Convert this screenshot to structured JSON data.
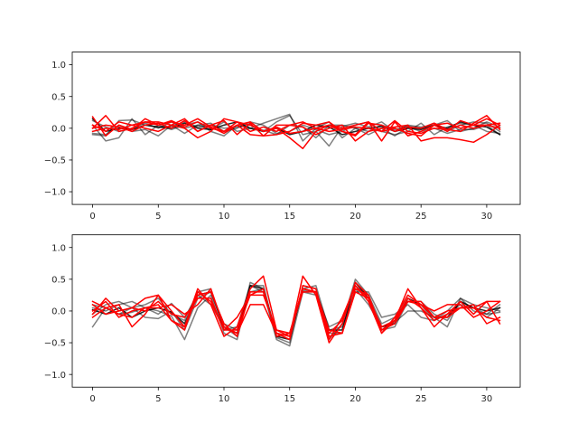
{
  "chart_data": [
    {
      "type": "line",
      "xlim": [
        -1.55,
        32.55
      ],
      "ylim": [
        -1.2,
        1.2
      ],
      "xticks": [
        0,
        5,
        10,
        15,
        20,
        25,
        30
      ],
      "yticks": [
        -1.0,
        -0.5,
        0.0,
        0.5,
        1.0
      ],
      "xtick_labels": [
        "0",
        "5",
        "10",
        "15",
        "20",
        "25",
        "30"
      ],
      "ytick_labels": [
        "−1.0",
        "−0.5",
        "0.0",
        "0.5",
        "1.0"
      ],
      "grid": false,
      "series": [
        {
          "color": "#000000",
          "opacity": 0.5,
          "values": [
            -0.1,
            -0.12,
            0.12,
            0.13,
            0.05,
            0.02,
            0.03,
            0.1,
            0.02,
            0.05,
            0.0,
            0.02,
            0.05,
            -0.05,
            0.1,
            0.2,
            -0.1,
            -0.05,
            -0.28,
            0.03,
            0.08,
            0.02,
            0.1,
            -0.05,
            0.05,
            0.02,
            0.05,
            0.12,
            -0.05,
            0.0,
            0.1,
            0.02
          ]
        },
        {
          "color": "#000000",
          "opacity": 0.5,
          "values": [
            0.05,
            -0.2,
            -0.15,
            0.15,
            -0.1,
            0.05,
            -0.02,
            0.05,
            0.1,
            -0.05,
            -0.12,
            0.05,
            0.0,
            0.08,
            0.15,
            0.22,
            -0.2,
            0.0,
            0.1,
            -0.15,
            0.0,
            -0.05,
            0.05,
            -0.02,
            0.03,
            0.0,
            0.08,
            -0.05,
            0.05,
            0.1,
            0.08,
            -0.05
          ]
        },
        {
          "color": "#000000",
          "opacity": 0.5,
          "values": [
            -0.08,
            -0.1,
            0.05,
            -0.05,
            -0.02,
            -0.12,
            0.05,
            -0.08,
            0.05,
            -0.02,
            0.1,
            -0.05,
            0.0,
            -0.03,
            -0.1,
            0.05,
            0.02,
            -0.15,
            0.05,
            0.05,
            0.0,
            -0.1,
            0.0,
            -0.12,
            0.02,
            -0.05,
            0.0,
            -0.08,
            -0.02,
            -0.02,
            0.05,
            -0.1
          ]
        },
        {
          "color": "#000000",
          "opacity": 0.5,
          "values": [
            0.12,
            0.02,
            -0.05,
            0.0,
            0.08,
            0.0,
            0.1,
            0.0,
            0.05,
            0.08,
            -0.05,
            0.0,
            0.1,
            0.05,
            -0.08,
            -0.05,
            0.05,
            -0.02,
            -0.1,
            -0.05,
            0.05,
            0.1,
            -0.05,
            -0.1,
            -0.05,
            0.08,
            -0.1,
            0.02,
            0.08,
            0.05,
            -0.05,
            -0.08
          ]
        },
        {
          "color": "#000000",
          "opacity": 0.85,
          "values": [
            0.15,
            -0.05,
            0.0,
            -0.02,
            0.05,
            0.02,
            0.0,
            0.08,
            0.0,
            -0.02,
            0.05,
            0.1,
            0.0,
            -0.05,
            0.0,
            -0.1,
            -0.05,
            0.05,
            0.02,
            -0.1,
            -0.05,
            0.0,
            0.03,
            -0.05,
            0.0,
            -0.02,
            0.05,
            0.0,
            0.1,
            0.05,
            0.02,
            -0.1
          ]
        },
        {
          "color": "#ff0000",
          "opacity": 1,
          "values": [
            0.18,
            -0.12,
            0.05,
            -0.02,
            0.15,
            0.05,
            0.12,
            0.02,
            0.1,
            0.0,
            -0.05,
            0.1,
            0.05,
            -0.05,
            0.0,
            -0.15,
            -0.32,
            -0.05,
            0.05,
            -0.05,
            -0.12,
            0.08,
            0.05,
            -0.05,
            0.02,
            0.0,
            0.08,
            -0.02,
            -0.05,
            0.08,
            0.2,
            -0.02
          ]
        },
        {
          "color": "#ff0000",
          "opacity": 1,
          "values": [
            0.0,
            0.2,
            -0.05,
            0.0,
            0.1,
            0.1,
            0.05,
            0.15,
            -0.05,
            0.05,
            0.12,
            -0.1,
            0.08,
            -0.12,
            0.05,
            0.05,
            0.1,
            0.0,
            0.05,
            0.0,
            0.05,
            0.1,
            -0.2,
            0.1,
            -0.12,
            -0.05,
            0.05,
            0.08,
            0.0,
            0.05,
            0.15,
            0.05
          ]
        },
        {
          "color": "#ff0000",
          "opacity": 1,
          "values": [
            -0.05,
            0.0,
            -0.02,
            0.05,
            0.0,
            -0.05,
            0.05,
            0.0,
            -0.15,
            -0.05,
            0.15,
            0.1,
            -0.05,
            0.02,
            -0.05,
            0.05,
            0.02,
            -0.1,
            0.0,
            0.05,
            -0.2,
            -0.05,
            0.0,
            0.02,
            0.05,
            -0.2,
            -0.15,
            -0.15,
            -0.18,
            -0.22,
            -0.1,
            0.05
          ]
        },
        {
          "color": "#ff0000",
          "opacity": 1,
          "values": [
            0.05,
            -0.05,
            0.1,
            0.05,
            0.1,
            0.05,
            0.1,
            0.05,
            0.15,
            0.02,
            -0.08,
            0.05,
            -0.1,
            -0.12,
            -0.1,
            -0.05,
            0.08,
            0.05,
            0.1,
            -0.05,
            -0.1,
            0.1,
            -0.05,
            0.0,
            -0.08,
            -0.12,
            0.05,
            -0.05,
            0.12,
            0.05,
            0.05,
            0.0
          ]
        },
        {
          "color": "#ff0000",
          "opacity": 1,
          "values": [
            0.0,
            0.05,
            0.02,
            -0.05,
            0.05,
            0.08,
            0.0,
            0.12,
            -0.05,
            0.05,
            -0.05,
            0.05,
            0.1,
            -0.05,
            0.02,
            -0.08,
            -0.05,
            0.0,
            -0.05,
            -0.02,
            0.02,
            0.0,
            -0.05,
            0.12,
            -0.05,
            -0.08,
            0.0,
            -0.02,
            0.05,
            0.0,
            0.05,
            0.08
          ]
        }
      ]
    },
    {
      "type": "line",
      "xlim": [
        -1.55,
        32.55
      ],
      "ylim": [
        -1.2,
        1.2
      ],
      "xticks": [
        0,
        5,
        10,
        15,
        20,
        25,
        30
      ],
      "yticks": [
        -1.0,
        -0.5,
        0.0,
        0.5,
        1.0
      ],
      "xtick_labels": [
        "0",
        "5",
        "10",
        "15",
        "20",
        "25",
        "30"
      ],
      "ytick_labels": [
        "−1.0",
        "−0.5",
        "0.0",
        "0.5",
        "1.0"
      ],
      "grid": false,
      "series": [
        {
          "color": "#000000",
          "opacity": 0.5,
          "values": [
            -0.25,
            0.05,
            -0.05,
            -0.02,
            0.05,
            0.0,
            -0.08,
            -0.45,
            0.05,
            0.25,
            -0.35,
            -0.45,
            0.4,
            0.3,
            -0.45,
            -0.55,
            0.3,
            0.25,
            -0.35,
            -0.35,
            0.35,
            0.1,
            -0.25,
            -0.18,
            0.0,
            0.0,
            -0.1,
            -0.25,
            0.2,
            0.0,
            -0.05,
            -0.02
          ]
        },
        {
          "color": "#000000",
          "opacity": 0.5,
          "values": [
            0.05,
            0.0,
            0.1,
            0.15,
            0.05,
            -0.05,
            0.12,
            -0.1,
            0.25,
            0.1,
            -0.25,
            -0.4,
            0.45,
            0.35,
            -0.42,
            -0.5,
            0.4,
            0.35,
            -0.45,
            -0.2,
            0.5,
            0.25,
            -0.2,
            -0.1,
            0.2,
            0.1,
            -0.15,
            -0.05,
            0.1,
            0.05,
            -0.05,
            0.1
          ]
        },
        {
          "color": "#000000",
          "opacity": 0.5,
          "values": [
            0.1,
            0.05,
            -0.05,
            0.05,
            -0.1,
            -0.12,
            0.0,
            -0.3,
            0.2,
            0.3,
            -0.2,
            -0.3,
            0.3,
            0.35,
            -0.35,
            -0.4,
            0.32,
            0.3,
            -0.25,
            -0.15,
            0.4,
            0.2,
            -0.3,
            -0.25,
            0.15,
            0.15,
            -0.05,
            -0.15,
            0.15,
            0.05,
            -0.1,
            0.05
          ]
        },
        {
          "color": "#000000",
          "opacity": 0.5,
          "values": [
            -0.05,
            0.1,
            0.15,
            0.05,
            0.1,
            0.2,
            -0.05,
            -0.15,
            0.3,
            0.35,
            -0.3,
            -0.25,
            0.4,
            0.4,
            -0.4,
            -0.35,
            0.35,
            0.4,
            -0.3,
            -0.25,
            0.3,
            0.3,
            -0.1,
            -0.05,
            0.1,
            -0.1,
            -0.15,
            0.0,
            0.2,
            0.1,
            0.05,
            0.0
          ]
        },
        {
          "color": "#000000",
          "opacity": 0.85,
          "values": [
            0.02,
            -0.05,
            0.05,
            -0.1,
            0.0,
            0.05,
            -0.02,
            -0.2,
            0.25,
            0.3,
            -0.25,
            -0.35,
            0.4,
            0.35,
            -0.4,
            -0.45,
            0.35,
            0.3,
            -0.3,
            -0.3,
            0.45,
            0.2,
            -0.25,
            -0.2,
            0.2,
            0.1,
            -0.1,
            -0.1,
            0.15,
            0.05,
            0.0,
            0.05
          ]
        },
        {
          "color": "#ff0000",
          "opacity": 1,
          "values": [
            0.15,
            0.05,
            0.1,
            -0.25,
            -0.05,
            0.25,
            0.0,
            -0.25,
            0.35,
            0.1,
            -0.4,
            -0.25,
            0.35,
            0.55,
            -0.3,
            -0.4,
            0.55,
            0.25,
            -0.5,
            -0.2,
            0.45,
            0.25,
            -0.35,
            -0.15,
            0.35,
            0.05,
            -0.25,
            -0.05,
            0.15,
            -0.05,
            0.15,
            -0.2
          ]
        },
        {
          "color": "#ff0000",
          "opacity": 1,
          "values": [
            -0.05,
            0.2,
            0.0,
            0.05,
            0.2,
            0.25,
            -0.15,
            -0.25,
            0.25,
            0.3,
            -0.2,
            -0.4,
            0.3,
            0.3,
            -0.35,
            -0.45,
            0.4,
            0.35,
            -0.45,
            -0.1,
            0.4,
            0.15,
            -0.35,
            -0.1,
            0.25,
            0.1,
            0.0,
            0.1,
            0.1,
            -0.1,
            0.0,
            0.15
          ]
        },
        {
          "color": "#ff0000",
          "opacity": 1,
          "values": [
            0.1,
            -0.05,
            0.0,
            0.05,
            0.0,
            0.15,
            -0.05,
            -0.1,
            0.2,
            0.2,
            -0.3,
            -0.1,
            0.25,
            0.35,
            -0.4,
            -0.35,
            0.3,
            0.3,
            -0.4,
            -0.35,
            0.35,
            0.25,
            -0.3,
            -0.2,
            0.15,
            0.15,
            -0.1,
            -0.1,
            0.05,
            0.1,
            -0.2,
            -0.1
          ]
        },
        {
          "color": "#ff0000",
          "opacity": 1,
          "values": [
            0.0,
            0.15,
            -0.1,
            0.0,
            0.05,
            0.05,
            0.1,
            -0.05,
            0.1,
            0.35,
            -0.25,
            -0.35,
            0.1,
            0.1,
            -0.35,
            -0.4,
            0.35,
            0.3,
            -0.3,
            -0.35,
            0.3,
            0.2,
            -0.25,
            -0.15,
            0.15,
            0.1,
            -0.1,
            0.0,
            0.05,
            0.05,
            0.15,
            0.15
          ]
        },
        {
          "color": "#ff0000",
          "opacity": 1,
          "values": [
            -0.1,
            0.05,
            -0.05,
            -0.1,
            0.05,
            0.1,
            -0.15,
            -0.3,
            0.3,
            0.15,
            -0.3,
            -0.3,
            0.25,
            0.25,
            -0.3,
            -0.35,
            0.35,
            0.3,
            -0.35,
            -0.15,
            0.4,
            0.2,
            -0.3,
            -0.15,
            0.2,
            0.05,
            -0.15,
            -0.05,
            0.05,
            0.05,
            -0.1,
            -0.15
          ]
        }
      ]
    }
  ]
}
